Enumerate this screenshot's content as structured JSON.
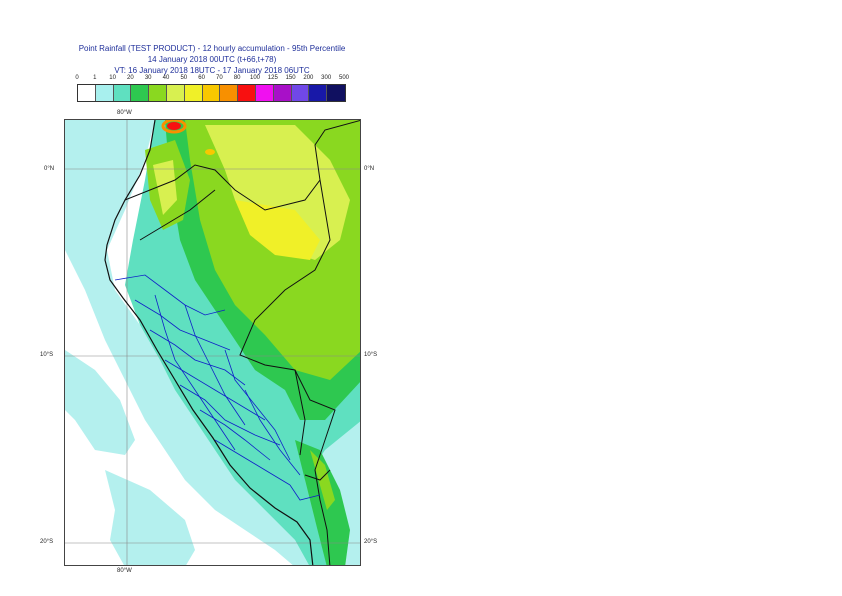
{
  "title": {
    "line1": "Point Rainfall (TEST PRODUCT) - 12 hourly accumulation - 95th Percentile",
    "line2": "14 January 2018 00UTC (t+66,t+78)",
    "line3": "VT: 16 January 2018 18UTC - 17 January 2018 06UTC"
  },
  "legend": {
    "thresholds": [
      "0",
      "1",
      "10",
      "20",
      "30",
      "40",
      "50",
      "60",
      "70",
      "80",
      "100",
      "125",
      "150",
      "200",
      "300",
      "500"
    ],
    "colors": [
      "#ffffff",
      "#a8f0ee",
      "#5fe0c0",
      "#2ec850",
      "#8ad820",
      "#d8f050",
      "#f0f028",
      "#f8c800",
      "#f89000",
      "#f81010",
      "#f010f0",
      "#a810c8",
      "#7048e8",
      "#1818a8",
      "#101060"
    ]
  },
  "map": {
    "lon_labels": {
      "top": "80°W",
      "bottom": "80°W"
    },
    "lat_labels": [
      "0°N",
      "10°S",
      "20°S"
    ]
  }
}
